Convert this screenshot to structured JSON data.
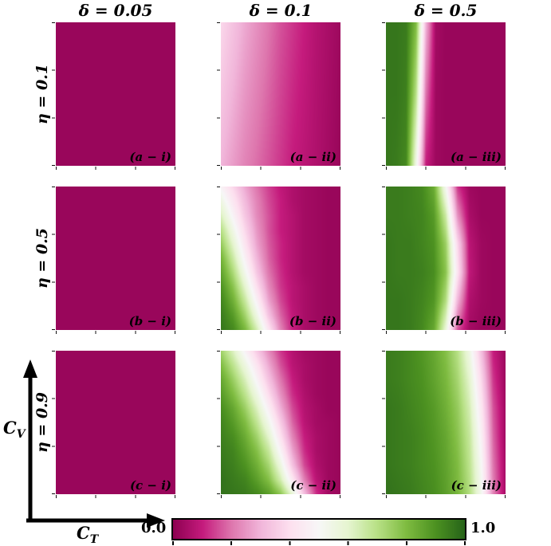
{
  "figure": {
    "col_headers": [
      "δ = 0.05",
      "δ = 0.1",
      "δ = 0.5"
    ],
    "row_labels": [
      "η = 0.1",
      "η = 0.5",
      "η = 0.9"
    ],
    "x_axis": {
      "letter": "C",
      "subscript": "T"
    },
    "y_axis": {
      "letter": "C",
      "subscript": "V"
    },
    "colorbar": {
      "min_label": "0.0",
      "max_label": "1.0"
    }
  },
  "chart_data": {
    "type": "heatmap",
    "description": "3x3 grid of heatmaps over the (C_T, C_V) plane; columns vary δ = 0.05, 0.1, 0.5 and rows vary η = 0.1, 0.5, 0.9; color encodes a value from 0.0 (magenta) to 1.0 (dark green)",
    "x_variable": "C_T",
    "y_variable": "C_V",
    "value_range": [
      0.0,
      1.0
    ],
    "col_param": {
      "name": "δ",
      "values": [
        0.05,
        0.1,
        0.5
      ]
    },
    "row_param": {
      "name": "η",
      "values": [
        0.1,
        0.5,
        0.9
      ]
    },
    "colorbar": {
      "min": 0.0,
      "max": 1.0,
      "orientation": "horizontal"
    },
    "colormap": {
      "name": "PiYG",
      "stops": [
        [
          0.0,
          142,
          1,
          82
        ],
        [
          0.1,
          197,
          27,
          125
        ],
        [
          0.2,
          222,
          119,
          174
        ],
        [
          0.3,
          241,
          182,
          218
        ],
        [
          0.4,
          253,
          224,
          239
        ],
        [
          0.5,
          247,
          247,
          247
        ],
        [
          0.6,
          230,
          245,
          208
        ],
        [
          0.7,
          184,
          225,
          134
        ],
        [
          0.8,
          127,
          188,
          65
        ],
        [
          0.9,
          77,
          146,
          33
        ],
        [
          1.0,
          39,
          100,
          25
        ]
      ]
    },
    "panels": [
      {
        "id": "a-i",
        "label": "(a − i)",
        "eta": 0.1,
        "delta": 0.05,
        "grid": [
          [
            0.02,
            0.02
          ],
          [
            0.02,
            0.02
          ]
        ]
      },
      {
        "id": "a-ii",
        "label": "(a − ii)",
        "eta": 0.1,
        "delta": 0.1,
        "grid": [
          [
            0.38,
            0.33,
            0.28,
            0.24,
            0.2,
            0.16,
            0.13,
            0.1,
            0.07,
            0.05,
            0.03
          ],
          [
            0.3,
            0.26,
            0.22,
            0.19,
            0.16,
            0.13,
            0.1,
            0.08,
            0.06,
            0.04,
            0.02
          ]
        ]
      },
      {
        "id": "a-iii",
        "label": "(a − iii)",
        "eta": 0.1,
        "delta": 0.5,
        "grid": [
          [
            0.96,
            0.96,
            0.95,
            0.8,
            0.3,
            0.04,
            0.02,
            0.02,
            0.02,
            0.02,
            0.02,
            0.02,
            0.02
          ],
          [
            0.96,
            0.96,
            0.94,
            0.7,
            0.2,
            0.03,
            0.02,
            0.02,
            0.02,
            0.02,
            0.02,
            0.02,
            0.02
          ],
          [
            0.96,
            0.95,
            0.92,
            0.55,
            0.1,
            0.03,
            0.02,
            0.02,
            0.02,
            0.02,
            0.02,
            0.02,
            0.02
          ]
        ]
      },
      {
        "id": "b-i",
        "label": "(b − i)",
        "eta": 0.5,
        "delta": 0.05,
        "grid": [
          [
            0.02,
            0.02
          ],
          [
            0.02,
            0.02
          ]
        ]
      },
      {
        "id": "b-ii",
        "label": "(b − ii)",
        "eta": 0.5,
        "delta": 0.1,
        "grid": [
          [
            0.48,
            0.38,
            0.28,
            0.2,
            0.14,
            0.09,
            0.06,
            0.04,
            0.03,
            0.02,
            0.02
          ],
          [
            0.55,
            0.43,
            0.31,
            0.22,
            0.15,
            0.1,
            0.06,
            0.04,
            0.03,
            0.02,
            0.02
          ],
          [
            0.62,
            0.48,
            0.34,
            0.23,
            0.16,
            0.1,
            0.07,
            0.04,
            0.03,
            0.02,
            0.02
          ],
          [
            0.7,
            0.54,
            0.38,
            0.25,
            0.16,
            0.1,
            0.07,
            0.04,
            0.03,
            0.02,
            0.02
          ],
          [
            0.76,
            0.6,
            0.42,
            0.27,
            0.17,
            0.11,
            0.07,
            0.04,
            0.03,
            0.02,
            0.02
          ],
          [
            0.82,
            0.66,
            0.47,
            0.3,
            0.18,
            0.11,
            0.07,
            0.04,
            0.03,
            0.02,
            0.02
          ],
          [
            0.86,
            0.72,
            0.53,
            0.34,
            0.2,
            0.12,
            0.07,
            0.04,
            0.03,
            0.02,
            0.02
          ],
          [
            0.9,
            0.78,
            0.6,
            0.4,
            0.23,
            0.13,
            0.08,
            0.05,
            0.03,
            0.02,
            0.02
          ],
          [
            0.93,
            0.83,
            0.67,
            0.47,
            0.27,
            0.15,
            0.08,
            0.05,
            0.03,
            0.02,
            0.02
          ],
          [
            0.95,
            0.88,
            0.74,
            0.55,
            0.33,
            0.18,
            0.09,
            0.05,
            0.03,
            0.02,
            0.02
          ],
          [
            0.96,
            0.92,
            0.81,
            0.64,
            0.42,
            0.22,
            0.1,
            0.05,
            0.03,
            0.02,
            0.02
          ]
        ]
      },
      {
        "id": "b-iii",
        "label": "(b − iii)",
        "eta": 0.5,
        "delta": 0.5,
        "grid": [
          [
            0.95,
            0.95,
            0.94,
            0.92,
            0.84,
            0.52,
            0.13,
            0.03,
            0.02,
            0.02,
            0.02
          ],
          [
            0.95,
            0.95,
            0.94,
            0.93,
            0.88,
            0.66,
            0.24,
            0.05,
            0.02,
            0.02,
            0.02
          ],
          [
            0.96,
            0.95,
            0.95,
            0.93,
            0.9,
            0.75,
            0.38,
            0.08,
            0.03,
            0.02,
            0.02
          ],
          [
            0.96,
            0.95,
            0.95,
            0.94,
            0.91,
            0.78,
            0.42,
            0.09,
            0.03,
            0.02,
            0.02
          ],
          [
            0.96,
            0.96,
            0.95,
            0.93,
            0.89,
            0.71,
            0.3,
            0.06,
            0.03,
            0.02,
            0.02
          ],
          [
            0.96,
            0.96,
            0.95,
            0.92,
            0.85,
            0.58,
            0.16,
            0.04,
            0.02,
            0.02,
            0.02
          ]
        ]
      },
      {
        "id": "c-i",
        "label": "(c − i)",
        "eta": 0.9,
        "delta": 0.05,
        "grid": [
          [
            0.02,
            0.02
          ],
          [
            0.02,
            0.02
          ]
        ]
      },
      {
        "id": "c-ii",
        "label": "(c − ii)",
        "eta": 0.9,
        "delta": 0.1,
        "grid": [
          [
            0.74,
            0.62,
            0.48,
            0.35,
            0.23,
            0.13,
            0.07,
            0.04,
            0.03,
            0.02,
            0.02
          ],
          [
            0.8,
            0.69,
            0.56,
            0.42,
            0.28,
            0.16,
            0.08,
            0.05,
            0.03,
            0.02,
            0.02
          ],
          [
            0.85,
            0.75,
            0.63,
            0.48,
            0.33,
            0.2,
            0.1,
            0.05,
            0.03,
            0.02,
            0.02
          ],
          [
            0.88,
            0.8,
            0.69,
            0.55,
            0.39,
            0.24,
            0.12,
            0.06,
            0.03,
            0.02,
            0.02
          ],
          [
            0.91,
            0.85,
            0.75,
            0.62,
            0.46,
            0.29,
            0.15,
            0.07,
            0.04,
            0.02,
            0.02
          ],
          [
            0.93,
            0.88,
            0.8,
            0.68,
            0.53,
            0.35,
            0.18,
            0.08,
            0.04,
            0.03,
            0.02
          ],
          [
            0.94,
            0.91,
            0.84,
            0.74,
            0.6,
            0.41,
            0.22,
            0.1,
            0.05,
            0.03,
            0.02
          ],
          [
            0.95,
            0.93,
            0.87,
            0.79,
            0.67,
            0.48,
            0.27,
            0.12,
            0.05,
            0.03,
            0.02
          ],
          [
            0.96,
            0.94,
            0.9,
            0.83,
            0.73,
            0.56,
            0.33,
            0.15,
            0.06,
            0.03,
            0.02
          ],
          [
            0.97,
            0.95,
            0.93,
            0.87,
            0.79,
            0.64,
            0.43,
            0.21,
            0.08,
            0.03,
            0.02
          ],
          [
            0.97,
            0.96,
            0.95,
            0.92,
            0.87,
            0.77,
            0.58,
            0.32,
            0.12,
            0.04,
            0.02
          ]
        ]
      },
      {
        "id": "c-iii",
        "label": "(c − iii)",
        "eta": 0.9,
        "delta": 0.5,
        "grid": [
          [
            0.95,
            0.94,
            0.92,
            0.89,
            0.85,
            0.79,
            0.7,
            0.55,
            0.32,
            0.1,
            0.03
          ],
          [
            0.95,
            0.94,
            0.92,
            0.9,
            0.86,
            0.81,
            0.73,
            0.6,
            0.38,
            0.13,
            0.03
          ],
          [
            0.96,
            0.95,
            0.93,
            0.91,
            0.88,
            0.83,
            0.76,
            0.64,
            0.43,
            0.16,
            0.04
          ],
          [
            0.96,
            0.95,
            0.94,
            0.92,
            0.89,
            0.85,
            0.78,
            0.67,
            0.47,
            0.18,
            0.04
          ],
          [
            0.96,
            0.95,
            0.94,
            0.92,
            0.9,
            0.86,
            0.8,
            0.69,
            0.5,
            0.2,
            0.05
          ],
          [
            0.97,
            0.96,
            0.95,
            0.93,
            0.91,
            0.87,
            0.81,
            0.71,
            0.52,
            0.22,
            0.05
          ]
        ]
      }
    ]
  }
}
